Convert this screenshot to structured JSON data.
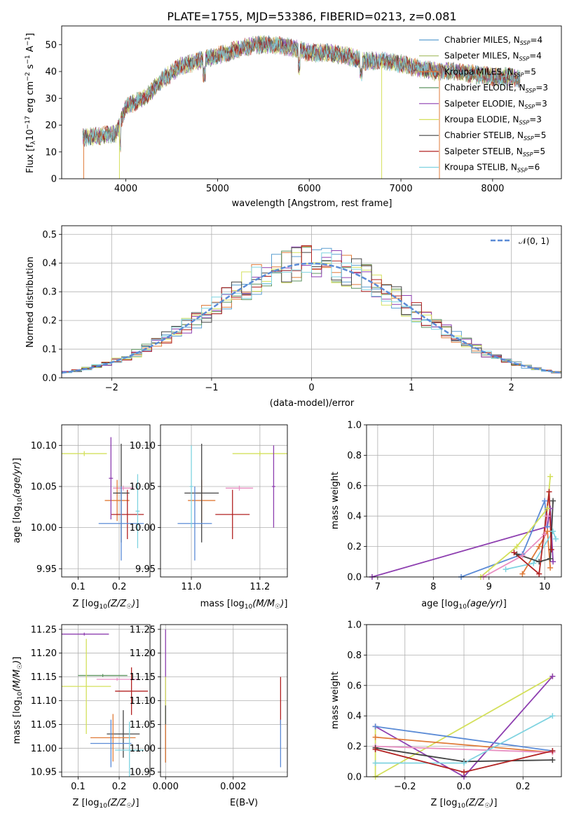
{
  "chart_data": [
    {
      "type": "line",
      "title": "PLATE=1755, MJD=53386, FIBERID=0213, z=0.081",
      "xlabel": "wavelength [Angstrom, rest frame]",
      "ylabel": "Flux [f_λ 10^-17 erg cm^-2 s^-1 A^-1]",
      "xlim": [
        3300,
        8750
      ],
      "ylim": [
        0,
        57
      ],
      "xticks": [
        "4000",
        "5000",
        "6000",
        "7000",
        "8000"
      ],
      "yticks": [
        "0",
        "10",
        "20",
        "30",
        "40",
        "50"
      ],
      "legend_position": "right",
      "spectrum_shape": {
        "x": [
          3500,
          3700,
          3900,
          4000,
          4200,
          4400,
          4600,
          4800,
          5000,
          5200,
          5400,
          5600,
          5800,
          6000,
          6200,
          6400,
          6600,
          6800,
          7000,
          7200,
          7400,
          7600,
          7800,
          8000,
          8200,
          8300
        ],
        "y": [
          15,
          16,
          17,
          27,
          30,
          37,
          42,
          44,
          46,
          48,
          50,
          50,
          49,
          47,
          47,
          46,
          44,
          44,
          43,
          41,
          40,
          40,
          39,
          38,
          38,
          37
        ]
      },
      "series": [
        {
          "name": "Chabrier MILES, N_SSP=4",
          "color": "#5a9ed0"
        },
        {
          "name": "Salpeter MILES, N_SSP=4",
          "color": "#a6bd63"
        },
        {
          "name": "Kroupa MILES, N_SSP=5",
          "color": "#e07b39"
        },
        {
          "name": "Chabrier ELODIE, N_SSP=3",
          "color": "#5e9460"
        },
        {
          "name": "Salpeter ELODIE, N_SSP=3",
          "color": "#8e3fb0"
        },
        {
          "name": "Kroupa ELODIE, N_SSP=3",
          "color": "#d4e05c"
        },
        {
          "name": "Chabrier STELIB, N_SSP=5",
          "color": "#444444"
        },
        {
          "name": "Salpeter STELIB, N_SSP=5",
          "color": "#b22222"
        },
        {
          "name": "Kroupa STELIB, N_SSP=6",
          "color": "#7fd3e0"
        }
      ],
      "legend_labels": [
        {
          "base": "Chabrier MILES, N",
          "sub": "SSP",
          "tail": "=4"
        },
        {
          "base": "Salpeter MILES, N",
          "sub": "SSP",
          "tail": "=4"
        },
        {
          "base": "Kroupa MILES, N",
          "sub": "SSP",
          "tail": "=5"
        },
        {
          "base": "Chabrier ELODIE, N",
          "sub": "SSP",
          "tail": "=3"
        },
        {
          "base": "Salpeter ELODIE, N",
          "sub": "SSP",
          "tail": "=3"
        },
        {
          "base": "Kroupa ELODIE, N",
          "sub": "SSP",
          "tail": "=3"
        },
        {
          "base": "Chabrier STELIB, N",
          "sub": "SSP",
          "tail": "=5"
        },
        {
          "base": "Salpeter STELIB, N",
          "sub": "SSP",
          "tail": "=5"
        },
        {
          "base": "Kroupa STELIB, N",
          "sub": "SSP",
          "tail": "=6"
        }
      ]
    },
    {
      "type": "line",
      "xlabel": "(data-model)/error",
      "ylabel": "Normed distribution",
      "xlim": [
        -2.5,
        2.5
      ],
      "ylim": [
        0,
        0.53
      ],
      "xticks": [
        "−2",
        "−1",
        "0",
        "1",
        "2"
      ],
      "yticks": [
        "0.0",
        "0.1",
        "0.2",
        "0.3",
        "0.4",
        "0.5"
      ],
      "grid": true,
      "legend_position": "top-right",
      "legend": "𝒩(0, 1)",
      "bin_width": 0.1,
      "series_colors": [
        "#5a9ed0",
        "#e07b39",
        "#5e9460",
        "#8e3fb0",
        "#d4e05c",
        "#444444",
        "#b22222",
        "#7fd3e0"
      ],
      "reference_color": "#5b8bd6"
    },
    {
      "type": "scatter",
      "xlabel": "Z [log10(Z/Z☉)]",
      "ylabel": "age [log10(age/yr)]",
      "xlim": [
        0.06,
        0.275
      ],
      "ylim": [
        9.94,
        10.125
      ],
      "xticks": [
        0.1,
        0.2
      ],
      "yticks": [
        "9.95",
        "10.00",
        "10.05",
        "10.10"
      ],
      "grid": true,
      "points": [
        {
          "x": 0.115,
          "xerr": 0.055,
          "y": 10.09,
          "yerr": 0.003,
          "color": "#d4e05c"
        },
        {
          "x": 0.21,
          "xerr": 0.025,
          "y": 10.048,
          "yerr": 0.003,
          "color": "#e88fc2"
        },
        {
          "x": 0.195,
          "xerr": 0.03,
          "y": 10.033,
          "yerr": 0.025,
          "color": "#e07b39"
        },
        {
          "x": 0.22,
          "xerr": 0.04,
          "y": 10.016,
          "yerr": 0.03,
          "color": "#b22222"
        },
        {
          "x": 0.205,
          "xerr": 0.02,
          "y": 10.042,
          "yerr": 0.06,
          "color": "#444444"
        },
        {
          "x": 0.205,
          "xerr": 0.055,
          "y": 10.005,
          "yerr": 0.045,
          "color": "#5b8bd6"
        },
        {
          "x": 0.245,
          "xerr": 0.005,
          "y": 10.02,
          "yerr": 0.045,
          "color": "#7fd3e0"
        },
        {
          "x": 0.18,
          "xerr": 0.005,
          "y": 10.06,
          "yerr": 0.05,
          "color": "#8e3fb0"
        }
      ]
    },
    {
      "type": "scatter",
      "xlabel": "mass [log10(M/M☉)]",
      "xlim": [
        10.91,
        11.28
      ],
      "ylim": [
        9.94,
        10.125
      ],
      "xticks": [
        "11.0",
        "11.2"
      ],
      "yticks": [
        "9.95",
        "10.00",
        "10.05",
        "10.10"
      ],
      "grid": true,
      "points": [
        {
          "x": 11.2,
          "xerr": 0.08,
          "y": 10.09,
          "yerr": 0.003,
          "color": "#d4e05c"
        },
        {
          "x": 11.14,
          "xerr": 0.04,
          "y": 10.048,
          "yerr": 0.003,
          "color": "#e88fc2"
        },
        {
          "x": 11.03,
          "xerr": 0.04,
          "y": 10.033,
          "yerr": 0.025,
          "color": "#e07b39"
        },
        {
          "x": 11.12,
          "xerr": 0.05,
          "y": 10.016,
          "yerr": 0.03,
          "color": "#b22222"
        },
        {
          "x": 11.03,
          "xerr": 0.05,
          "y": 10.042,
          "yerr": 0.06,
          "color": "#444444"
        },
        {
          "x": 11.01,
          "xerr": 0.05,
          "y": 10.005,
          "yerr": 0.045,
          "color": "#5b8bd6"
        },
        {
          "x": 11.0,
          "xerr": 0.005,
          "y": 10.05,
          "yerr": 0.05,
          "color": "#7fd3e0"
        },
        {
          "x": 11.24,
          "xerr": 0.005,
          "y": 10.05,
          "yerr": 0.05,
          "color": "#8e3fb0"
        }
      ]
    },
    {
      "type": "line",
      "xlabel": "age [log10(age/yr)]",
      "ylabel": "mass weight",
      "xlim": [
        6.8,
        10.3
      ],
      "ylim": [
        0,
        1
      ],
      "xticks": [
        "7",
        "8",
        "9",
        "10"
      ],
      "yticks": [
        "0.0",
        "0.2",
        "0.4",
        "0.6",
        "0.8",
        "1.0"
      ],
      "grid": true,
      "series": [
        {
          "color": "#8e3fb0",
          "x": [
            6.9,
            10.05,
            10.1,
            10.15
          ],
          "y": [
            0.0,
            0.33,
            0.45,
            0.1
          ]
        },
        {
          "color": "#5b8bd6",
          "x": [
            8.5,
            9.6,
            10.0,
            10.05
          ],
          "y": [
            0.0,
            0.15,
            0.5,
            0.33
          ]
        },
        {
          "color": "#d4e05c",
          "x": [
            8.85,
            9.5,
            10.05,
            10.1
          ],
          "y": [
            0.0,
            0.2,
            0.45,
            0.66
          ]
        },
        {
          "color": "#e88fc2",
          "x": [
            8.9,
            9.6,
            10.0,
            10.05
          ],
          "y": [
            0.0,
            0.14,
            0.28,
            0.4
          ]
        },
        {
          "color": "#e07b39",
          "x": [
            9.6,
            9.9,
            10.05,
            10.1
          ],
          "y": [
            0.02,
            0.2,
            0.3,
            0.06
          ]
        },
        {
          "color": "#7fd3e0",
          "x": [
            9.3,
            9.8,
            10.15,
            10.2
          ],
          "y": [
            0.05,
            0.09,
            0.3,
            0.25
          ]
        },
        {
          "color": "#444444",
          "x": [
            9.5,
            9.9,
            10.1,
            10.15
          ],
          "y": [
            0.15,
            0.1,
            0.12,
            0.5
          ]
        },
        {
          "color": "#b22222",
          "x": [
            9.45,
            9.9,
            10.08,
            10.12
          ],
          "y": [
            0.16,
            0.02,
            0.56,
            0.18
          ]
        }
      ]
    },
    {
      "type": "scatter",
      "xlabel": "Z [log10(Z/Z☉)]",
      "ylabel": "mass [log10(M/M☉)]",
      "xlim": [
        0.06,
        0.275
      ],
      "ylim": [
        10.94,
        11.26
      ],
      "xticks": [
        0.1,
        0.2
      ],
      "yticks": [
        "10.95",
        "11.00",
        "11.05",
        "11.10",
        "11.15",
        "11.20",
        "11.25"
      ],
      "grid": true,
      "points": [
        {
          "x": 0.115,
          "xerr": 0.06,
          "y": 11.24,
          "yerr": 0.003,
          "color": "#8e3fb0"
        },
        {
          "x": 0.16,
          "xerr": 0.06,
          "y": 11.153,
          "yerr": 0.003,
          "color": "#5e9460"
        },
        {
          "x": 0.195,
          "xerr": 0.05,
          "y": 11.145,
          "yerr": 0.003,
          "color": "#e88fc2"
        },
        {
          "x": 0.12,
          "xerr": 0.06,
          "y": 11.13,
          "yerr": 0.1,
          "color": "#d4e05c"
        },
        {
          "x": 0.23,
          "xerr": 0.04,
          "y": 11.12,
          "yerr": 0.05,
          "color": "#b22222"
        },
        {
          "x": 0.21,
          "xerr": 0.04,
          "y": 11.03,
          "yerr": 0.05,
          "color": "#444444"
        },
        {
          "x": 0.185,
          "xerr": 0.055,
          "y": 11.022,
          "yerr": 0.05,
          "color": "#e07b39"
        },
        {
          "x": 0.18,
          "xerr": 0.05,
          "y": 11.01,
          "yerr": 0.05,
          "color": "#5b8bd6"
        },
        {
          "x": 0.225,
          "xerr": 0.035,
          "y": 10.996,
          "yerr": 0.06,
          "color": "#7fd3e0"
        }
      ]
    },
    {
      "type": "scatter",
      "xlabel": "E(B-V)",
      "xlim": [
        -0.00015,
        0.0036
      ],
      "ylim": [
        10.94,
        11.26
      ],
      "xticks": [
        "0.000",
        "0.002"
      ],
      "yticks": [
        "10.95",
        "11.00",
        "11.05",
        "11.10",
        "11.15",
        "11.20",
        "11.25"
      ],
      "grid": true,
      "points": [
        {
          "x": 0.0,
          "y": 11.17,
          "yerr": 0.08,
          "color": "#8e3fb0"
        },
        {
          "x": 0.0,
          "y": 11.1,
          "yerr": 0.05,
          "color": "#d4e05c"
        },
        {
          "x": 0.0,
          "y": 11.03,
          "yerr": 0.06,
          "color": "#444444"
        },
        {
          "x": 0.0,
          "y": 11.01,
          "yerr": 0.04,
          "color": "#e07b39"
        },
        {
          "x": 0.0034,
          "y": 11.1,
          "yerr": 0.05,
          "color": "#b22222"
        },
        {
          "x": 0.0034,
          "y": 11.01,
          "yerr": 0.05,
          "color": "#5b8bd6"
        }
      ]
    },
    {
      "type": "line",
      "xlabel": "Z [log10(Z/Z☉)]",
      "ylabel": "mass weight",
      "xlim": [
        -0.33,
        0.33
      ],
      "ylim": [
        0,
        1
      ],
      "xticks": [
        "−0.2",
        "0.0",
        "0.2"
      ],
      "yticks": [
        "0.0",
        "0.2",
        "0.4",
        "0.6",
        "0.8",
        "1.0"
      ],
      "grid": true,
      "series": [
        {
          "color": "#d4e05c",
          "x": [
            -0.3,
            -0.3,
            0.3
          ],
          "y": [
            0.33,
            0.0,
            0.66
          ]
        },
        {
          "color": "#8e3fb0",
          "x": [
            -0.3,
            0.0,
            0.3
          ],
          "y": [
            0.33,
            0.0,
            0.66
          ]
        },
        {
          "color": "#5b8bd6",
          "x": [
            -0.3,
            0.3
          ],
          "y": [
            0.33,
            0.17
          ]
        },
        {
          "color": "#e07b39",
          "x": [
            -0.3,
            0.3
          ],
          "y": [
            0.26,
            0.16
          ]
        },
        {
          "color": "#e88fc2",
          "x": [
            -0.3,
            0.3
          ],
          "y": [
            0.2,
            0.16
          ]
        },
        {
          "color": "#444444",
          "x": [
            -0.3,
            0.0,
            0.3
          ],
          "y": [
            0.19,
            0.1,
            0.11
          ]
        },
        {
          "color": "#7fd3e0",
          "x": [
            -0.3,
            0.0,
            0.3
          ],
          "y": [
            0.09,
            0.09,
            0.4
          ]
        },
        {
          "color": "#b22222",
          "x": [
            -0.3,
            0.0,
            0.3
          ],
          "y": [
            0.18,
            0.03,
            0.17
          ]
        }
      ]
    }
  ]
}
